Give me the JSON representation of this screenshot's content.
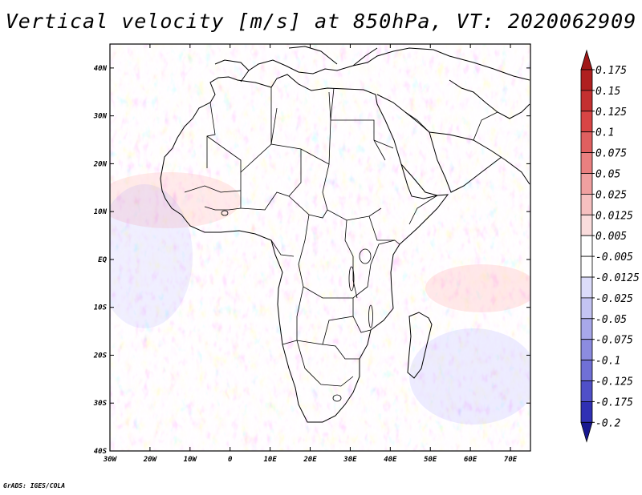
{
  "title": "Vertical velocity [m/s] at 850hPa, VT: 2020062909",
  "credit": "GrADS: IGES/COLA",
  "map": {
    "lon_range": [
      -30,
      75
    ],
    "lat_range": [
      -40,
      45
    ],
    "x_ticks": [
      "30W",
      "20W",
      "10W",
      "0",
      "10E",
      "20E",
      "30E",
      "40E",
      "50E",
      "60E",
      "70E"
    ],
    "x_tick_values": [
      -30,
      -20,
      -10,
      0,
      10,
      20,
      30,
      40,
      50,
      60,
      70
    ],
    "y_ticks": [
      "40S",
      "30S",
      "20S",
      "10S",
      "EQ",
      "10N",
      "20N",
      "30N",
      "40N"
    ],
    "y_tick_values": [
      -40,
      -30,
      -20,
      -10,
      0,
      10,
      20,
      30,
      40
    ]
  },
  "colorbar": {
    "labels": [
      "0.175",
      "0.15",
      "0.125",
      "0.1",
      "0.075",
      "0.05",
      "0.025",
      "0.0125",
      "0.005",
      "-0.005",
      "-0.0125",
      "-0.025",
      "-0.05",
      "-0.075",
      "-0.1",
      "-0.125",
      "-0.175",
      "-0.2"
    ],
    "colors": [
      "#b02020",
      "#c43030",
      "#d84545",
      "#e06060",
      "#ea8080",
      "#f0a0a0",
      "#f6c0c0",
      "#fadcdc",
      "#ffffff",
      "#ffffff",
      "#dcdcfa",
      "#c4c4f2",
      "#a8a8ea",
      "#8c8ce0",
      "#7070d6",
      "#5050c8",
      "#3030b4",
      "#2020a0"
    ],
    "top_arrow_color": "#a01818",
    "bottom_arrow_color": "#181890"
  }
}
